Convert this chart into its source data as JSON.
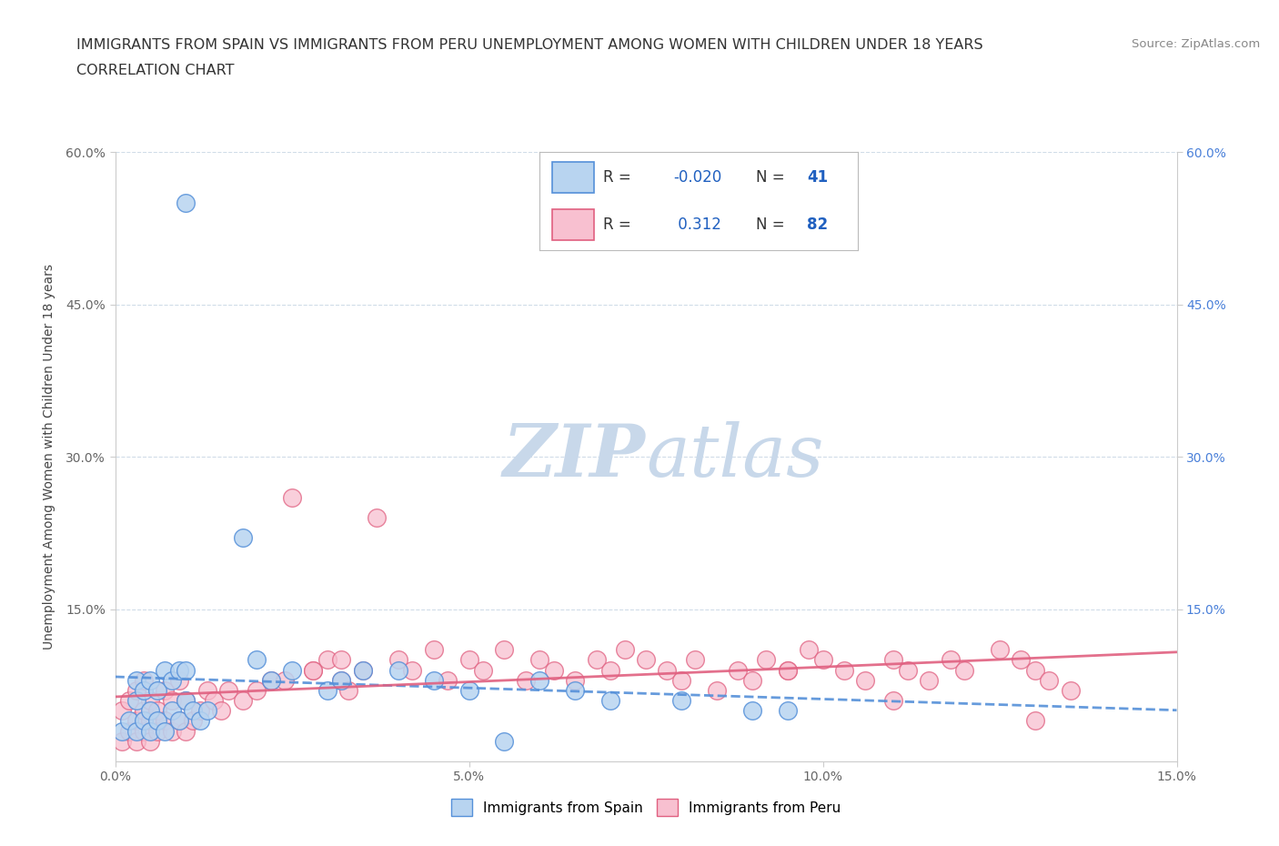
{
  "title_line1": "IMMIGRANTS FROM SPAIN VS IMMIGRANTS FROM PERU UNEMPLOYMENT AMONG WOMEN WITH CHILDREN UNDER 18 YEARS",
  "title_line2": "CORRELATION CHART",
  "source_text": "Source: ZipAtlas.com",
  "ylabel": "Unemployment Among Women with Children Under 18 years",
  "xlim": [
    0.0,
    0.15
  ],
  "ylim": [
    0.0,
    0.6
  ],
  "xticks": [
    0.0,
    0.05,
    0.1,
    0.15
  ],
  "yticks": [
    0.15,
    0.3,
    0.45,
    0.6
  ],
  "xticklabels": [
    "0.0%",
    "5.0%",
    "10.0%",
    "15.0%"
  ],
  "yticklabels": [
    "15.0%",
    "30.0%",
    "45.0%",
    "60.0%"
  ],
  "right_yticks": [
    0.15,
    0.3,
    0.45,
    0.6
  ],
  "right_yticklabels": [
    "15.0%",
    "30.0%",
    "45.0%",
    "60.0%"
  ],
  "spain_color": "#b8d4f0",
  "spain_edge_color": "#5590d9",
  "peru_color": "#f8c0d0",
  "peru_edge_color": "#e06080",
  "spain_R": -0.02,
  "spain_N": 41,
  "peru_R": 0.312,
  "peru_N": 82,
  "spain_line_color": "#5590d9",
  "peru_line_color": "#e06080",
  "watermark_color": "#c8d8ea",
  "legend_R_color": "#2060c0",
  "legend_N_color": "#2060c0",
  "background_color": "#ffffff",
  "grid_color": "#d0dce8",
  "spain_x": [
    0.01,
    0.001,
    0.002,
    0.003,
    0.003,
    0.004,
    0.005,
    0.005,
    0.006,
    0.007,
    0.008,
    0.009,
    0.01,
    0.011,
    0.012,
    0.013,
    0.003,
    0.004,
    0.005,
    0.006,
    0.007,
    0.008,
    0.009,
    0.01,
    0.018,
    0.02,
    0.022,
    0.025,
    0.03,
    0.032,
    0.035,
    0.04,
    0.045,
    0.05,
    0.06,
    0.065,
    0.07,
    0.08,
    0.09,
    0.095,
    0.055
  ],
  "spain_y": [
    0.55,
    0.03,
    0.04,
    0.03,
    0.06,
    0.04,
    0.03,
    0.05,
    0.04,
    0.03,
    0.05,
    0.04,
    0.06,
    0.05,
    0.04,
    0.05,
    0.08,
    0.07,
    0.08,
    0.07,
    0.09,
    0.08,
    0.09,
    0.09,
    0.22,
    0.1,
    0.08,
    0.09,
    0.07,
    0.08,
    0.09,
    0.09,
    0.08,
    0.07,
    0.08,
    0.07,
    0.06,
    0.06,
    0.05,
    0.05,
    0.02
  ],
  "peru_x": [
    0.001,
    0.001,
    0.002,
    0.002,
    0.003,
    0.003,
    0.003,
    0.004,
    0.004,
    0.004,
    0.005,
    0.005,
    0.005,
    0.006,
    0.006,
    0.007,
    0.007,
    0.008,
    0.008,
    0.009,
    0.009,
    0.01,
    0.01,
    0.011,
    0.012,
    0.013,
    0.014,
    0.015,
    0.016,
    0.018,
    0.02,
    0.022,
    0.025,
    0.028,
    0.03,
    0.032,
    0.033,
    0.035,
    0.037,
    0.04,
    0.042,
    0.045,
    0.047,
    0.05,
    0.052,
    0.055,
    0.058,
    0.06,
    0.062,
    0.065,
    0.068,
    0.07,
    0.072,
    0.075,
    0.078,
    0.08,
    0.082,
    0.085,
    0.088,
    0.09,
    0.092,
    0.095,
    0.098,
    0.1,
    0.103,
    0.106,
    0.11,
    0.112,
    0.115,
    0.118,
    0.12,
    0.125,
    0.128,
    0.13,
    0.132,
    0.135,
    0.024,
    0.028,
    0.032,
    0.095,
    0.11,
    0.13
  ],
  "peru_y": [
    0.02,
    0.05,
    0.03,
    0.06,
    0.02,
    0.04,
    0.07,
    0.03,
    0.05,
    0.08,
    0.02,
    0.04,
    0.06,
    0.03,
    0.05,
    0.04,
    0.07,
    0.03,
    0.06,
    0.04,
    0.08,
    0.03,
    0.06,
    0.04,
    0.05,
    0.07,
    0.06,
    0.05,
    0.07,
    0.06,
    0.07,
    0.08,
    0.26,
    0.09,
    0.1,
    0.08,
    0.07,
    0.09,
    0.24,
    0.1,
    0.09,
    0.11,
    0.08,
    0.1,
    0.09,
    0.11,
    0.08,
    0.1,
    0.09,
    0.08,
    0.1,
    0.09,
    0.11,
    0.1,
    0.09,
    0.08,
    0.1,
    0.07,
    0.09,
    0.08,
    0.1,
    0.09,
    0.11,
    0.1,
    0.09,
    0.08,
    0.1,
    0.09,
    0.08,
    0.1,
    0.09,
    0.11,
    0.1,
    0.09,
    0.08,
    0.07,
    0.08,
    0.09,
    0.1,
    0.09,
    0.06,
    0.04
  ]
}
